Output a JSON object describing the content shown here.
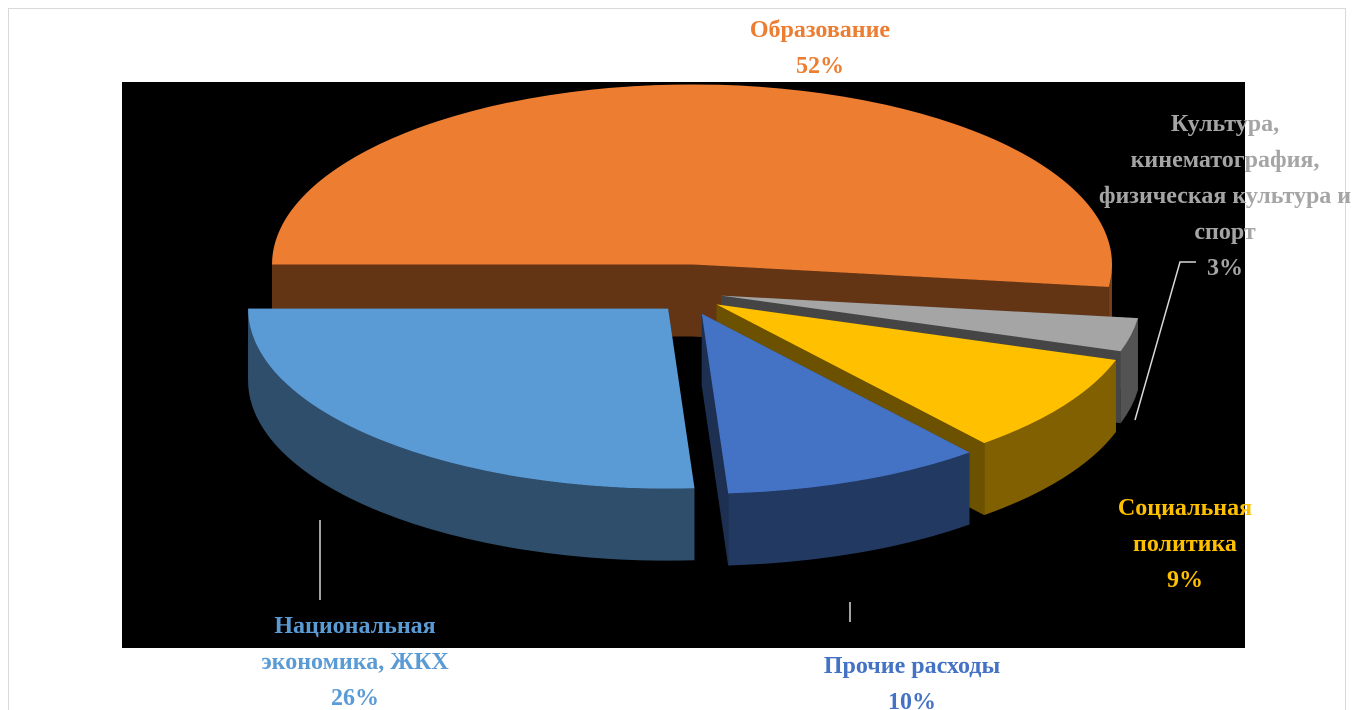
{
  "chart_data": {
    "type": "pie",
    "categories": [
      "Образование",
      "Культура, кинематография, физическая культура и спорт",
      "Социальная политика",
      "Прочие расходы",
      "Национальная экономика, ЖКХ"
    ],
    "values": [
      52,
      3,
      9,
      10,
      26
    ],
    "value_labels": [
      "52%",
      "3%",
      "9%",
      "10%",
      "26%"
    ],
    "colors": [
      "#ed7d31",
      "#a5a5a5",
      "#ffc000",
      "#4472c4",
      "#5b9bd5"
    ]
  }
}
